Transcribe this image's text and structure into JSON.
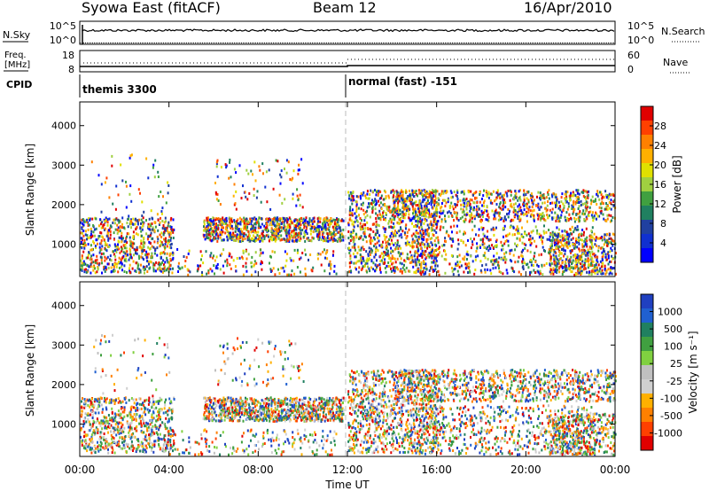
{
  "header": {
    "station": "Syowa East (fitACF)",
    "beam": "Beam 12",
    "date": "16/Apr/2010"
  },
  "nsky_panel": {
    "left_label": "N.Sky",
    "left_ticks": [
      "10^5",
      "10^0"
    ],
    "right_ticks": [
      "10^5",
      "10^0"
    ],
    "right_label": "N.Search"
  },
  "freq_panel": {
    "left_label_line1": "Freq.",
    "left_label_line2": "[MHz]",
    "left_ticks": [
      "18",
      "8"
    ],
    "right_ticks": [
      "60",
      "0"
    ],
    "right_label": "Nave"
  },
  "cpid": {
    "label": "CPID",
    "modes": [
      {
        "name": "themis 3300",
        "start_h": 0
      },
      {
        "name": "normal (fast) -151",
        "start_h": 12
      }
    ]
  },
  "x_axis": {
    "label": "Time UT",
    "ticks": [
      "00:00",
      "04:00",
      "08:00",
      "12:00",
      "16:00",
      "20:00",
      "00:00"
    ],
    "range_h": [
      0,
      24
    ]
  },
  "chart_data": [
    {
      "type": "heatmap",
      "name": "power",
      "ylabel": "Slant Range [km]",
      "ylim": [
        180,
        4600
      ],
      "yticks": [
        1000,
        2000,
        3000,
        4000
      ],
      "colorbar": {
        "label": "Power [dB]",
        "ticks": [
          "28",
          "24",
          "20",
          "16",
          "12",
          "8",
          "4"
        ],
        "colors": [
          "#e00000",
          "#ff4000",
          "#ff8000",
          "#ffb000",
          "#e0e000",
          "#a0d040",
          "#40a040",
          "#208060",
          "#2040a0",
          "#1030d0",
          "#0000ff"
        ]
      }
    },
    {
      "type": "heatmap",
      "name": "velocity",
      "ylabel": "Slant Range [km]",
      "ylim": [
        180,
        4600
      ],
      "yticks": [
        1000,
        2000,
        3000,
        4000
      ],
      "colorbar": {
        "label": "Velocity [m s⁻¹]",
        "ticks": [
          "1000",
          "500",
          "100",
          "25",
          "-25",
          "-100",
          "-500",
          "-1000"
        ],
        "colors": [
          "#2040c0",
          "#2060d0",
          "#208060",
          "#40a040",
          "#80d040",
          "#c0c0c0",
          "#d0d0d0",
          "#ffb000",
          "#ff8000",
          "#ff4000",
          "#e00000"
        ]
      }
    }
  ]
}
